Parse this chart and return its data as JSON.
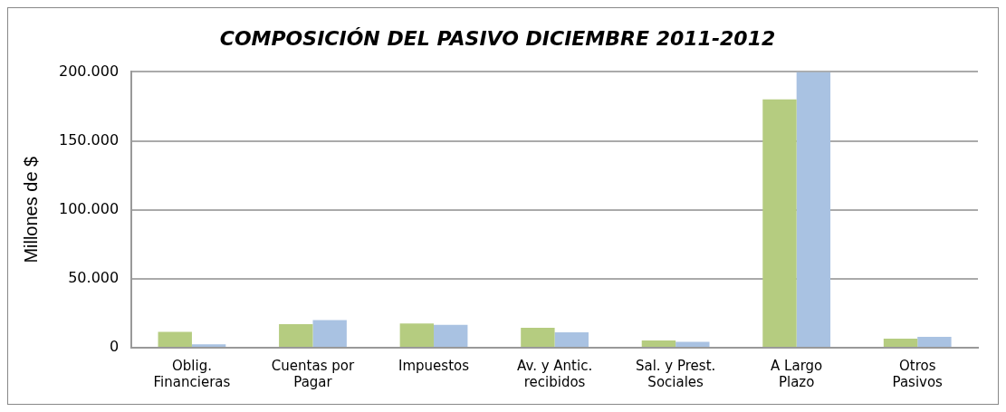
{
  "chart_data": {
    "type": "bar",
    "title": "COMPOSICIÓN DEL PASIVO DICIEMBRE 2011-2012",
    "ylabel": "Millones de $",
    "categories": [
      [
        "Oblig.",
        "Financieras"
      ],
      [
        "Cuentas por",
        "Pagar"
      ],
      "Impuestos",
      [
        "Av. y Antic.",
        "recibidos"
      ],
      [
        "Sal. y Prest.",
        "Sociales"
      ],
      [
        "A Largo",
        "Plazo"
      ],
      [
        "Otros",
        "Pasivos"
      ]
    ],
    "series": [
      {
        "color": "#b5cc80",
        "values": [
          11500,
          17000,
          17500,
          14500,
          5200,
          180000,
          6600
        ]
      },
      {
        "color": "#a9c2e2",
        "values": [
          2400,
          20000,
          16500,
          11200,
          4300,
          200000,
          7800
        ]
      }
    ],
    "ylim": [
      0,
      200000
    ],
    "yticks": [
      {
        "value": 0,
        "label": "0"
      },
      {
        "value": 50000,
        "label": "50.000"
      },
      {
        "value": 100000,
        "label": "100.000"
      },
      {
        "value": 150000,
        "label": "150.000"
      },
      {
        "value": 200000,
        "label": "200.000"
      }
    ],
    "grid": "y",
    "legend": false
  }
}
